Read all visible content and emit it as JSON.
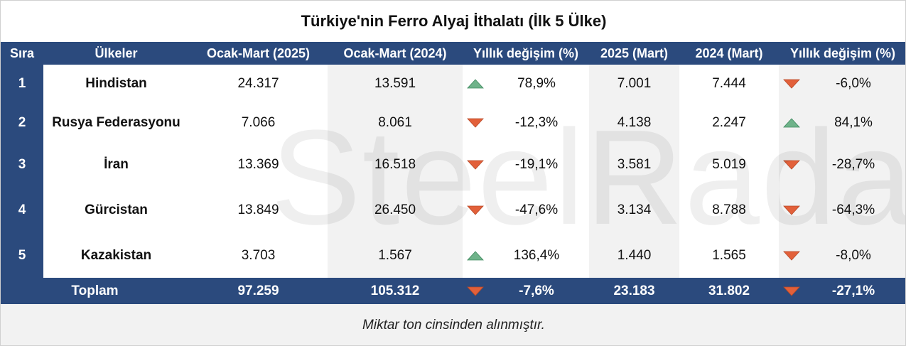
{
  "title": "Türkiye'nin Ferro Alyaj İthalatı (İlk 5 Ülke)",
  "watermark": "SteelRadar",
  "table": {
    "header": [
      "Sıra",
      "Ülkeler",
      "Ocak-Mart (2025)",
      "Ocak-Mart (2024)",
      "Yıllık değişim (%)",
      "2025 (Mart)",
      "2024 (Mart)",
      "Yıllık değişim (%)"
    ],
    "rows": [
      [
        "1",
        "Hindistan",
        "24.317",
        "13.591",
        "78,9%",
        "7.001",
        "7.444",
        "-6,0%"
      ],
      [
        "2",
        "Rusya Federasyonu",
        "7.066",
        "8.061",
        "-12,3%",
        "4.138",
        "2.247",
        "84,1%"
      ],
      [
        "3",
        "İran",
        "13.369",
        "16.518",
        "-19,1%",
        "3.581",
        "5.019",
        "-28,7%"
      ],
      [
        "4",
        "Gürcistan",
        "13.849",
        "26.450",
        "-47,6%",
        "3.134",
        "8.788",
        "-64,3%"
      ],
      [
        "5",
        "Kazakistan",
        "3.703",
        "1.567",
        "136,4%",
        "1.440",
        "1.565",
        "-8,0%"
      ]
    ],
    "total": [
      "Toplam",
      "97.259",
      "105.312",
      "-7,6%",
      "23.183",
      "31.802",
      "-27,1%"
    ]
  },
  "footnote": "Miktar  ton cinsinden alınmıştır."
}
